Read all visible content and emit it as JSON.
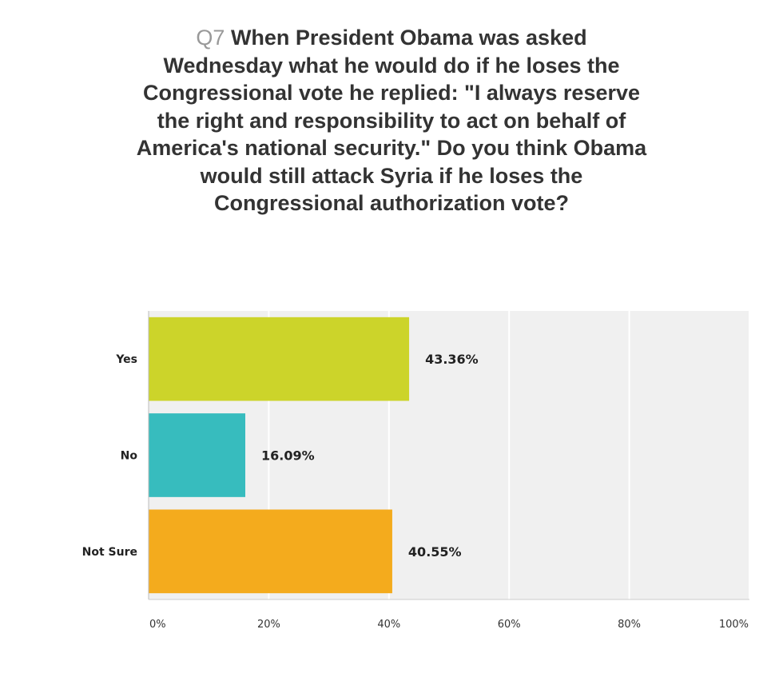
{
  "question": {
    "number": "Q7",
    "text": "When President Obama was asked Wednesday what he would do if he loses the Congressional vote he replied: \"I always reserve the right and responsibility to act on behalf of America's national security.\" Do you think Obama would still attack Syria if he loses the Congressional authorization vote?"
  },
  "chart_data": {
    "type": "bar",
    "orientation": "horizontal",
    "title": "Q7 When President Obama was asked Wednesday what he would do if he loses the Congressional vote he replied: \"I always reserve the right and responsibility to act on behalf of America's national security.\" Do you think Obama would still attack Syria if he loses the Congressional authorization vote?",
    "categories": [
      "Yes",
      "No",
      "Not Sure"
    ],
    "values": [
      43.36,
      16.09,
      40.55
    ],
    "value_labels": [
      "43.36%",
      "16.09%",
      "40.55%"
    ],
    "colors": [
      "#ccd42a",
      "#37bcbe",
      "#f4ab1d"
    ],
    "xlim": [
      0,
      100
    ],
    "x_ticks": [
      0,
      20,
      40,
      60,
      80,
      100
    ],
    "x_tick_labels": [
      "0%",
      "20%",
      "40%",
      "60%",
      "80%",
      "100%"
    ],
    "grid": true,
    "background": "#f0f0f0",
    "legend": "none"
  }
}
